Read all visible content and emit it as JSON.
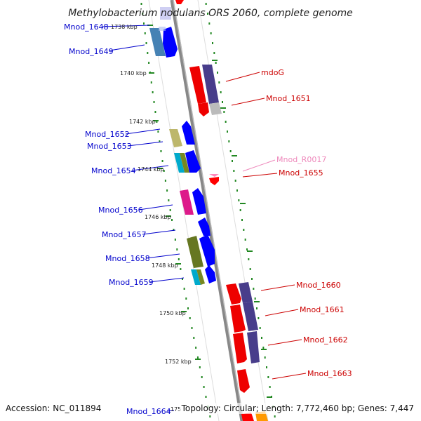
{
  "title": "Methylobacterium nodulans ORS 2060, complete genome",
  "footer": {
    "accession": "Accession: NC_011894",
    "topology": "Topology: Circular; Length: 7,772,460 bp; Genes: 7,447"
  },
  "colors": {
    "forward_label": "#0000cc",
    "reverse_label": "#cc0000",
    "rna_label": "#ee88bb",
    "forward_arrow": "#0000ff",
    "reverse_arrow": "#ff0000",
    "tick": "#228822",
    "backbone": "#888888"
  },
  "ticks": [
    "1738 kbp",
    "1740 kbp",
    "1742 kbp",
    "1744 kbp",
    "1746 kbp",
    "1748 kbp",
    "1750 kbp",
    "1752 kbp",
    "175"
  ],
  "labels": {
    "left": [
      "Mnod_1648",
      "Mnod_1649",
      "Mnod_1652",
      "Mnod_1653",
      "Mnod_1654",
      "Mnod_1656",
      "Mnod_1657",
      "Mnod_1658",
      "Mnod_1659",
      "Mnod_1664"
    ],
    "right": [
      "mdoG",
      "Mnod_1651",
      "Mnod_R0017",
      "Mnod_1655",
      "Mnod_1660",
      "Mnod_1661",
      "Mnod_1662",
      "Mnod_1663"
    ]
  }
}
